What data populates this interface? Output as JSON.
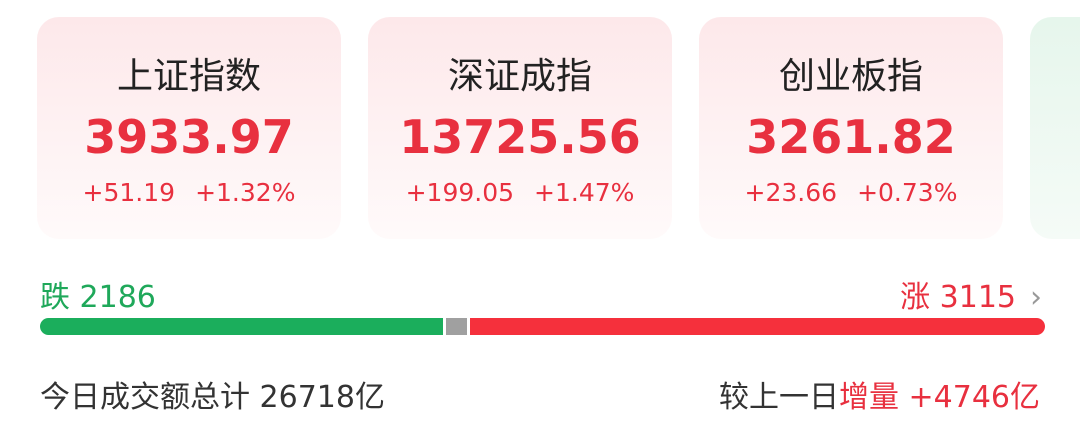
{
  "indices": [
    {
      "name": "上证指数",
      "value": "3933.97",
      "change": "+51.19",
      "percent": "+1.32%"
    },
    {
      "name": "深证成指",
      "value": "13725.56",
      "change": "+199.05",
      "percent": "+1.47%"
    },
    {
      "name": "创业板指",
      "value": "3261.82",
      "change": "+23.66",
      "percent": "+0.73%"
    }
  ],
  "breadth": {
    "down_label": "跌",
    "down_count": "2186",
    "up_label": "涨",
    "up_count": "3115",
    "chevron": "›",
    "colors": {
      "down": "#1bae5c",
      "flat": "#a0a0a0",
      "up": "#f5303c"
    }
  },
  "turnover": {
    "label": "今日成交额总计",
    "amount": "26718亿",
    "compare_label": "较上一日",
    "delta_label": "增量",
    "delta_value": "+4746亿"
  }
}
